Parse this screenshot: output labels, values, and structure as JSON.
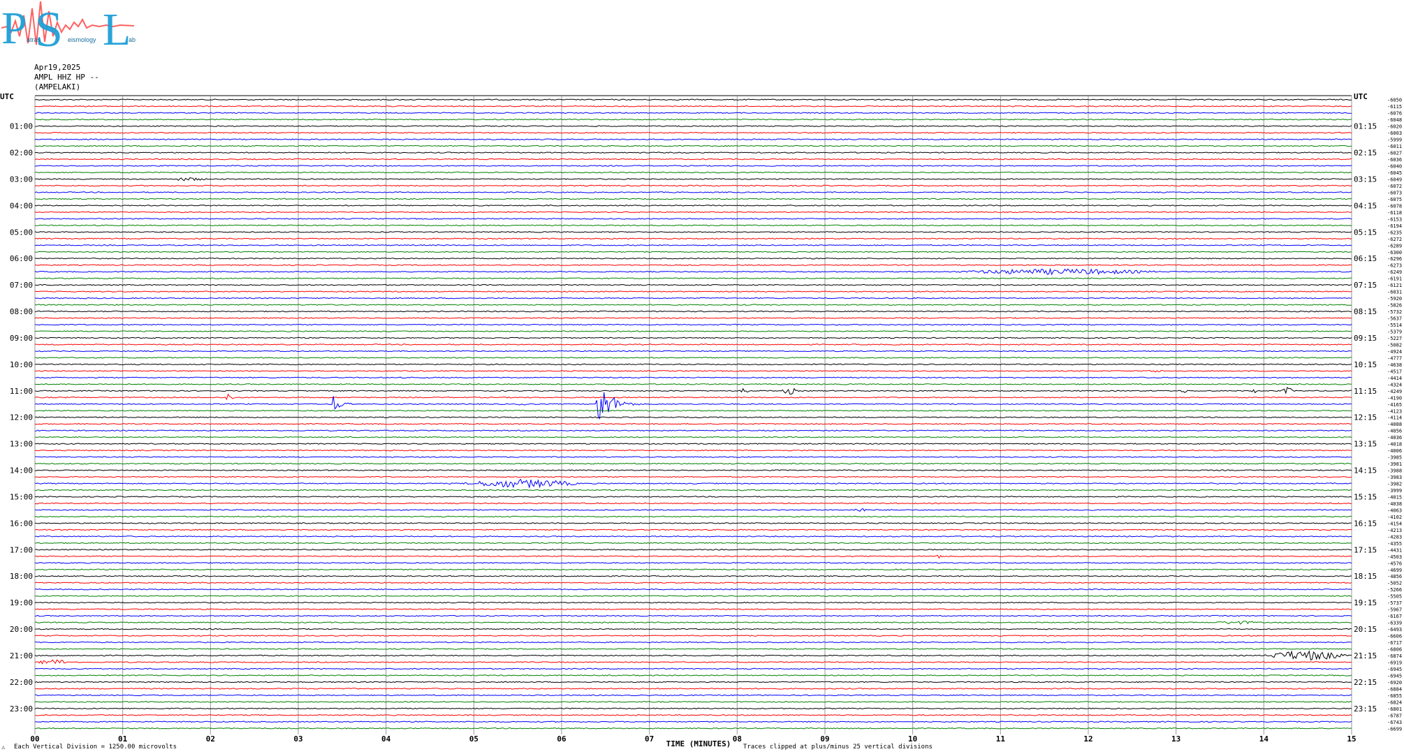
{
  "logo": {
    "letters": [
      "P",
      "S",
      "L"
    ],
    "small_text": [
      "atras",
      "eismology",
      "ab"
    ]
  },
  "header": {
    "date": "Apr19,2025",
    "station": "AMPL HHZ HP --",
    "site": "(AMPELAKI)"
  },
  "footer": {
    "division_note": "Each Vertical Division = 1250.00 microvolts",
    "clip_note": "Traces clipped at plus/minus 25 vertical divisions",
    "corner_mark": "⚠"
  },
  "chart_data": {
    "type": "line",
    "title": "",
    "xlabel": "TIME (MINUTES)",
    "ylabel": "UTC",
    "right_ylabel": "UTC",
    "x_ticks": [
      "00",
      "01",
      "02",
      "03",
      "04",
      "05",
      "06",
      "07",
      "08",
      "09",
      "10",
      "11",
      "12",
      "13",
      "14",
      "15"
    ],
    "xlim": [
      0,
      15
    ],
    "grid": true,
    "trace_minutes": 15,
    "trace_count": 96,
    "trace_colors": [
      "#000000",
      "#ff0000",
      "#0000ff",
      "#008000"
    ],
    "left_hour_labels": [
      "01:00",
      "02:00",
      "03:00",
      "04:00",
      "05:00",
      "06:00",
      "07:00",
      "08:00",
      "09:00",
      "10:00",
      "11:00",
      "12:00",
      "13:00",
      "14:00",
      "15:00",
      "16:00",
      "17:00",
      "18:00",
      "19:00",
      "20:00",
      "21:00",
      "22:00",
      "23:00"
    ],
    "right_hour_labels": [
      "01:15",
      "02:15",
      "03:15",
      "04:15",
      "05:15",
      "06:15",
      "07:15",
      "08:15",
      "09:15",
      "10:15",
      "11:15",
      "12:15",
      "13:15",
      "14:15",
      "15:15",
      "16:15",
      "17:15",
      "18:15",
      "19:15",
      "20:15",
      "21:15",
      "22:15",
      "23:15"
    ],
    "trace_offsets": [
      "-6050",
      "-6115",
      "-6076",
      "-6048",
      "-6020",
      "-6003",
      "-5999",
      "-6011",
      "-6027",
      "-6036",
      "-6040",
      "-6045",
      "-6049",
      "-6072",
      "-6073",
      "-6075",
      "-6078",
      "-6118",
      "-6153",
      "-6194",
      "-6235",
      "-6272",
      "-6289",
      "-6300",
      "-6296",
      "-6273",
      "-6249",
      "-6191",
      "-6121",
      "-6031",
      "-5920",
      "-5826",
      "-5732",
      "-5637",
      "-5514",
      "-5379",
      "-5227",
      "-5082",
      "-4924",
      "-4777",
      "-4638",
      "-4517",
      "-4414",
      "-4324",
      "-4249",
      "-4190",
      "-4165",
      "-4123",
      "-4114",
      "-4088",
      "-4056",
      "-4036",
      "-4018",
      "-4006",
      "-3985",
      "-3981",
      "-3988",
      "-3983",
      "-3982",
      "-3999",
      "-4015",
      "-4038",
      "-4063",
      "-4102",
      "-4154",
      "-4213",
      "-4283",
      "-4355",
      "-4431",
      "-4503",
      "-4576",
      "-4699",
      "-4856",
      "-5052",
      "-5266",
      "-5505",
      "-5737",
      "-5967",
      "-6167",
      "-6339",
      "-6493",
      "-6606",
      "-6717",
      "-6806",
      "-6874",
      "-6919",
      "-6945",
      "-6945",
      "-6920",
      "-6884",
      "-6855",
      "-6824",
      "-6801",
      "-6787",
      "-6743",
      "-6699"
    ],
    "events": [
      {
        "trace": 12,
        "start": 1.5,
        "end": 2.0,
        "amp": 2.5
      },
      {
        "trace": 26,
        "start": 10.3,
        "end": 13.0,
        "amp": 4
      },
      {
        "trace": 41,
        "start": 12.6,
        "end": 12.9,
        "amp": 2
      },
      {
        "trace": 44,
        "start": 8.03,
        "end": 8.15,
        "amp": 4
      },
      {
        "trace": 44,
        "start": 8.5,
        "end": 8.7,
        "amp": 5
      },
      {
        "trace": 44,
        "start": 13.05,
        "end": 13.15,
        "amp": 3
      },
      {
        "trace": 44,
        "start": 13.85,
        "end": 13.95,
        "amp": 3
      },
      {
        "trace": 44,
        "start": 14.2,
        "end": 14.35,
        "amp": 5
      },
      {
        "trace": 45,
        "start": 2.18,
        "end": 2.4,
        "amp": 11
      },
      {
        "trace": 46,
        "start": 3.4,
        "end": 3.8,
        "amp": 14
      },
      {
        "trace": 46,
        "start": 5.5,
        "end": 5.65,
        "amp": 4
      },
      {
        "trace": 46,
        "start": 6.4,
        "end": 7.1,
        "amp": 40
      },
      {
        "trace": 58,
        "start": 4.8,
        "end": 6.3,
        "amp": 6
      },
      {
        "trace": 62,
        "start": 9.3,
        "end": 9.5,
        "amp": 3
      },
      {
        "trace": 69,
        "start": 10.25,
        "end": 10.35,
        "amp": 3
      },
      {
        "trace": 79,
        "start": 13.4,
        "end": 14.0,
        "amp": 2.5
      },
      {
        "trace": 85,
        "start": 0.0,
        "end": 0.45,
        "amp": 4
      },
      {
        "trace": 84,
        "start": 13.95,
        "end": 15.0,
        "amp": 7
      }
    ]
  }
}
